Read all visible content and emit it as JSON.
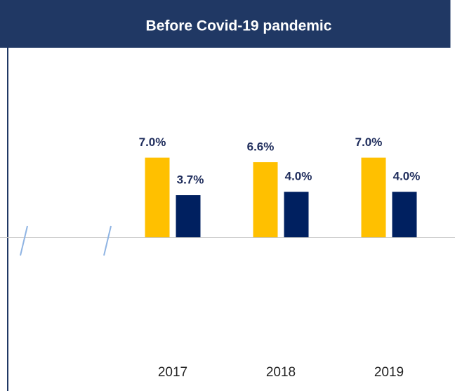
{
  "chart_data": {
    "type": "bar",
    "title": "Before Covid-19 pandemic",
    "categories": [
      "2017",
      "2018",
      "2019"
    ],
    "series": [
      {
        "color": "#ffc000",
        "values": [
          7.0,
          6.6,
          7.0
        ],
        "value_labels": [
          "7.0%",
          "6.6%",
          "7.0%"
        ]
      },
      {
        "color": "#002060",
        "values": [
          3.7,
          4.0,
          4.0
        ],
        "value_labels": [
          "3.7%",
          "4.0%",
          "4.0%"
        ]
      }
    ]
  }
}
